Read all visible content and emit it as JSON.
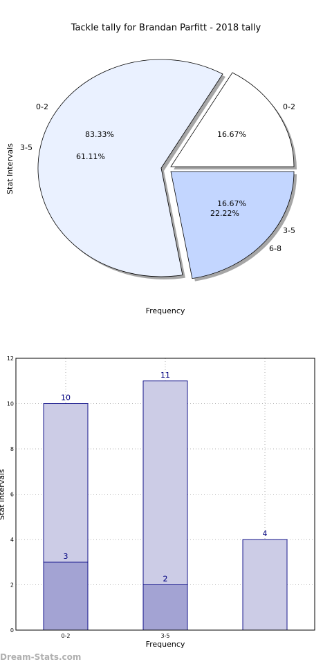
{
  "chart_data": [
    {
      "type": "pie",
      "title": "Tackle tally for Brandan Parfitt - 2018 tally",
      "xlabel": "Frequency",
      "ylabel": "Stat Intervals",
      "rings": [
        {
          "name": "outer",
          "slices": [
            {
              "label": "0-2",
              "percent_label": "16.67%",
              "value": 16.67,
              "color": "#ffffff"
            },
            {
              "label": "3-5",
              "percent_label": "83.33%",
              "value": 83.33,
              "color": "#eaf1ff"
            }
          ]
        },
        {
          "name": "inner",
          "slices": [
            {
              "label": "0-2",
              "percent_label": "16.67%",
              "value": 16.67,
              "color": "#ffffff"
            },
            {
              "label": "6-8",
              "percent_label": "22.22%",
              "value": 22.22,
              "color": "#c3d6ff"
            },
            {
              "label": "3-5",
              "percent_label": "61.11%",
              "value": 61.11,
              "color": "#eaf1ff"
            }
          ]
        }
      ],
      "grid": false
    },
    {
      "type": "bar",
      "stacked": true,
      "xlabel": "Frequency",
      "ylabel": "Stat Intervals",
      "categories": [
        "0-2",
        "3-5",
        ""
      ],
      "series": [
        {
          "values": [
            3,
            2,
            0
          ],
          "color": "#a3a3d3"
        },
        {
          "values": [
            7,
            9,
            4
          ],
          "color": "#cccce6"
        }
      ],
      "total_labels": [
        "10",
        "11",
        "4"
      ],
      "base_labels": [
        "3",
        "2",
        ""
      ],
      "ylim": [
        0,
        12
      ],
      "yticks": [
        "0",
        "2",
        "4",
        "6",
        "8",
        "10",
        "12"
      ],
      "grid": true
    }
  ],
  "watermark": "Dream-Stats.com"
}
